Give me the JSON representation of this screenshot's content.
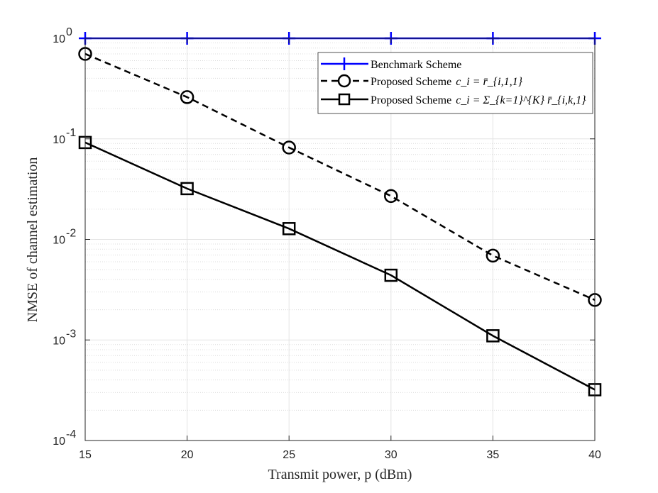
{
  "chart_data": {
    "type": "line",
    "title": "",
    "xlabel": "Transmit power, p (dBm)",
    "ylabel": "NMSE of channel estimation",
    "x": [
      15,
      20,
      25,
      30,
      35,
      40
    ],
    "xlim": [
      15,
      40
    ],
    "xticks": [
      "15",
      "20",
      "25",
      "30",
      "35",
      "40"
    ],
    "yscale": "log",
    "ylim": [
      0.0001,
      1
    ],
    "ytick_base": "10",
    "yticks": [
      {
        "value": 1,
        "exp": "0"
      },
      {
        "value": 0.1,
        "exp": "-1"
      },
      {
        "value": 0.01,
        "exp": "-2"
      },
      {
        "value": 0.001,
        "exp": "-3"
      },
      {
        "value": 0.0001,
        "exp": "-4"
      }
    ],
    "grid": true,
    "legend_position": "top-right",
    "series": [
      {
        "name": "Benchmark Scheme",
        "legend_text": "Benchmark Scheme",
        "color": "#0000ff",
        "line": "solid",
        "marker": "plus",
        "values": [
          1,
          1,
          1,
          1,
          1,
          1
        ]
      },
      {
        "name": "Proposed Scheme c_i = r̄_{i,1,1}",
        "legend_text": "Proposed Scheme",
        "legend_math": "c_i = r̄_{i,1,1}",
        "color": "#000000",
        "line": "dashed",
        "marker": "circle",
        "values": [
          0.7,
          0.26,
          0.082,
          0.027,
          0.0069,
          0.0025
        ]
      },
      {
        "name": "Proposed Scheme c_i = Σ_{k=1}^{K} r̄_{i,k,1}",
        "legend_text": "Proposed Scheme",
        "legend_math": "c_i = Σ_{k=1}^{K} r̄_{i,k,1}",
        "color": "#000000",
        "line": "solid",
        "marker": "square",
        "values": [
          0.092,
          0.032,
          0.0128,
          0.0044,
          0.0011,
          0.00032
        ]
      }
    ]
  }
}
